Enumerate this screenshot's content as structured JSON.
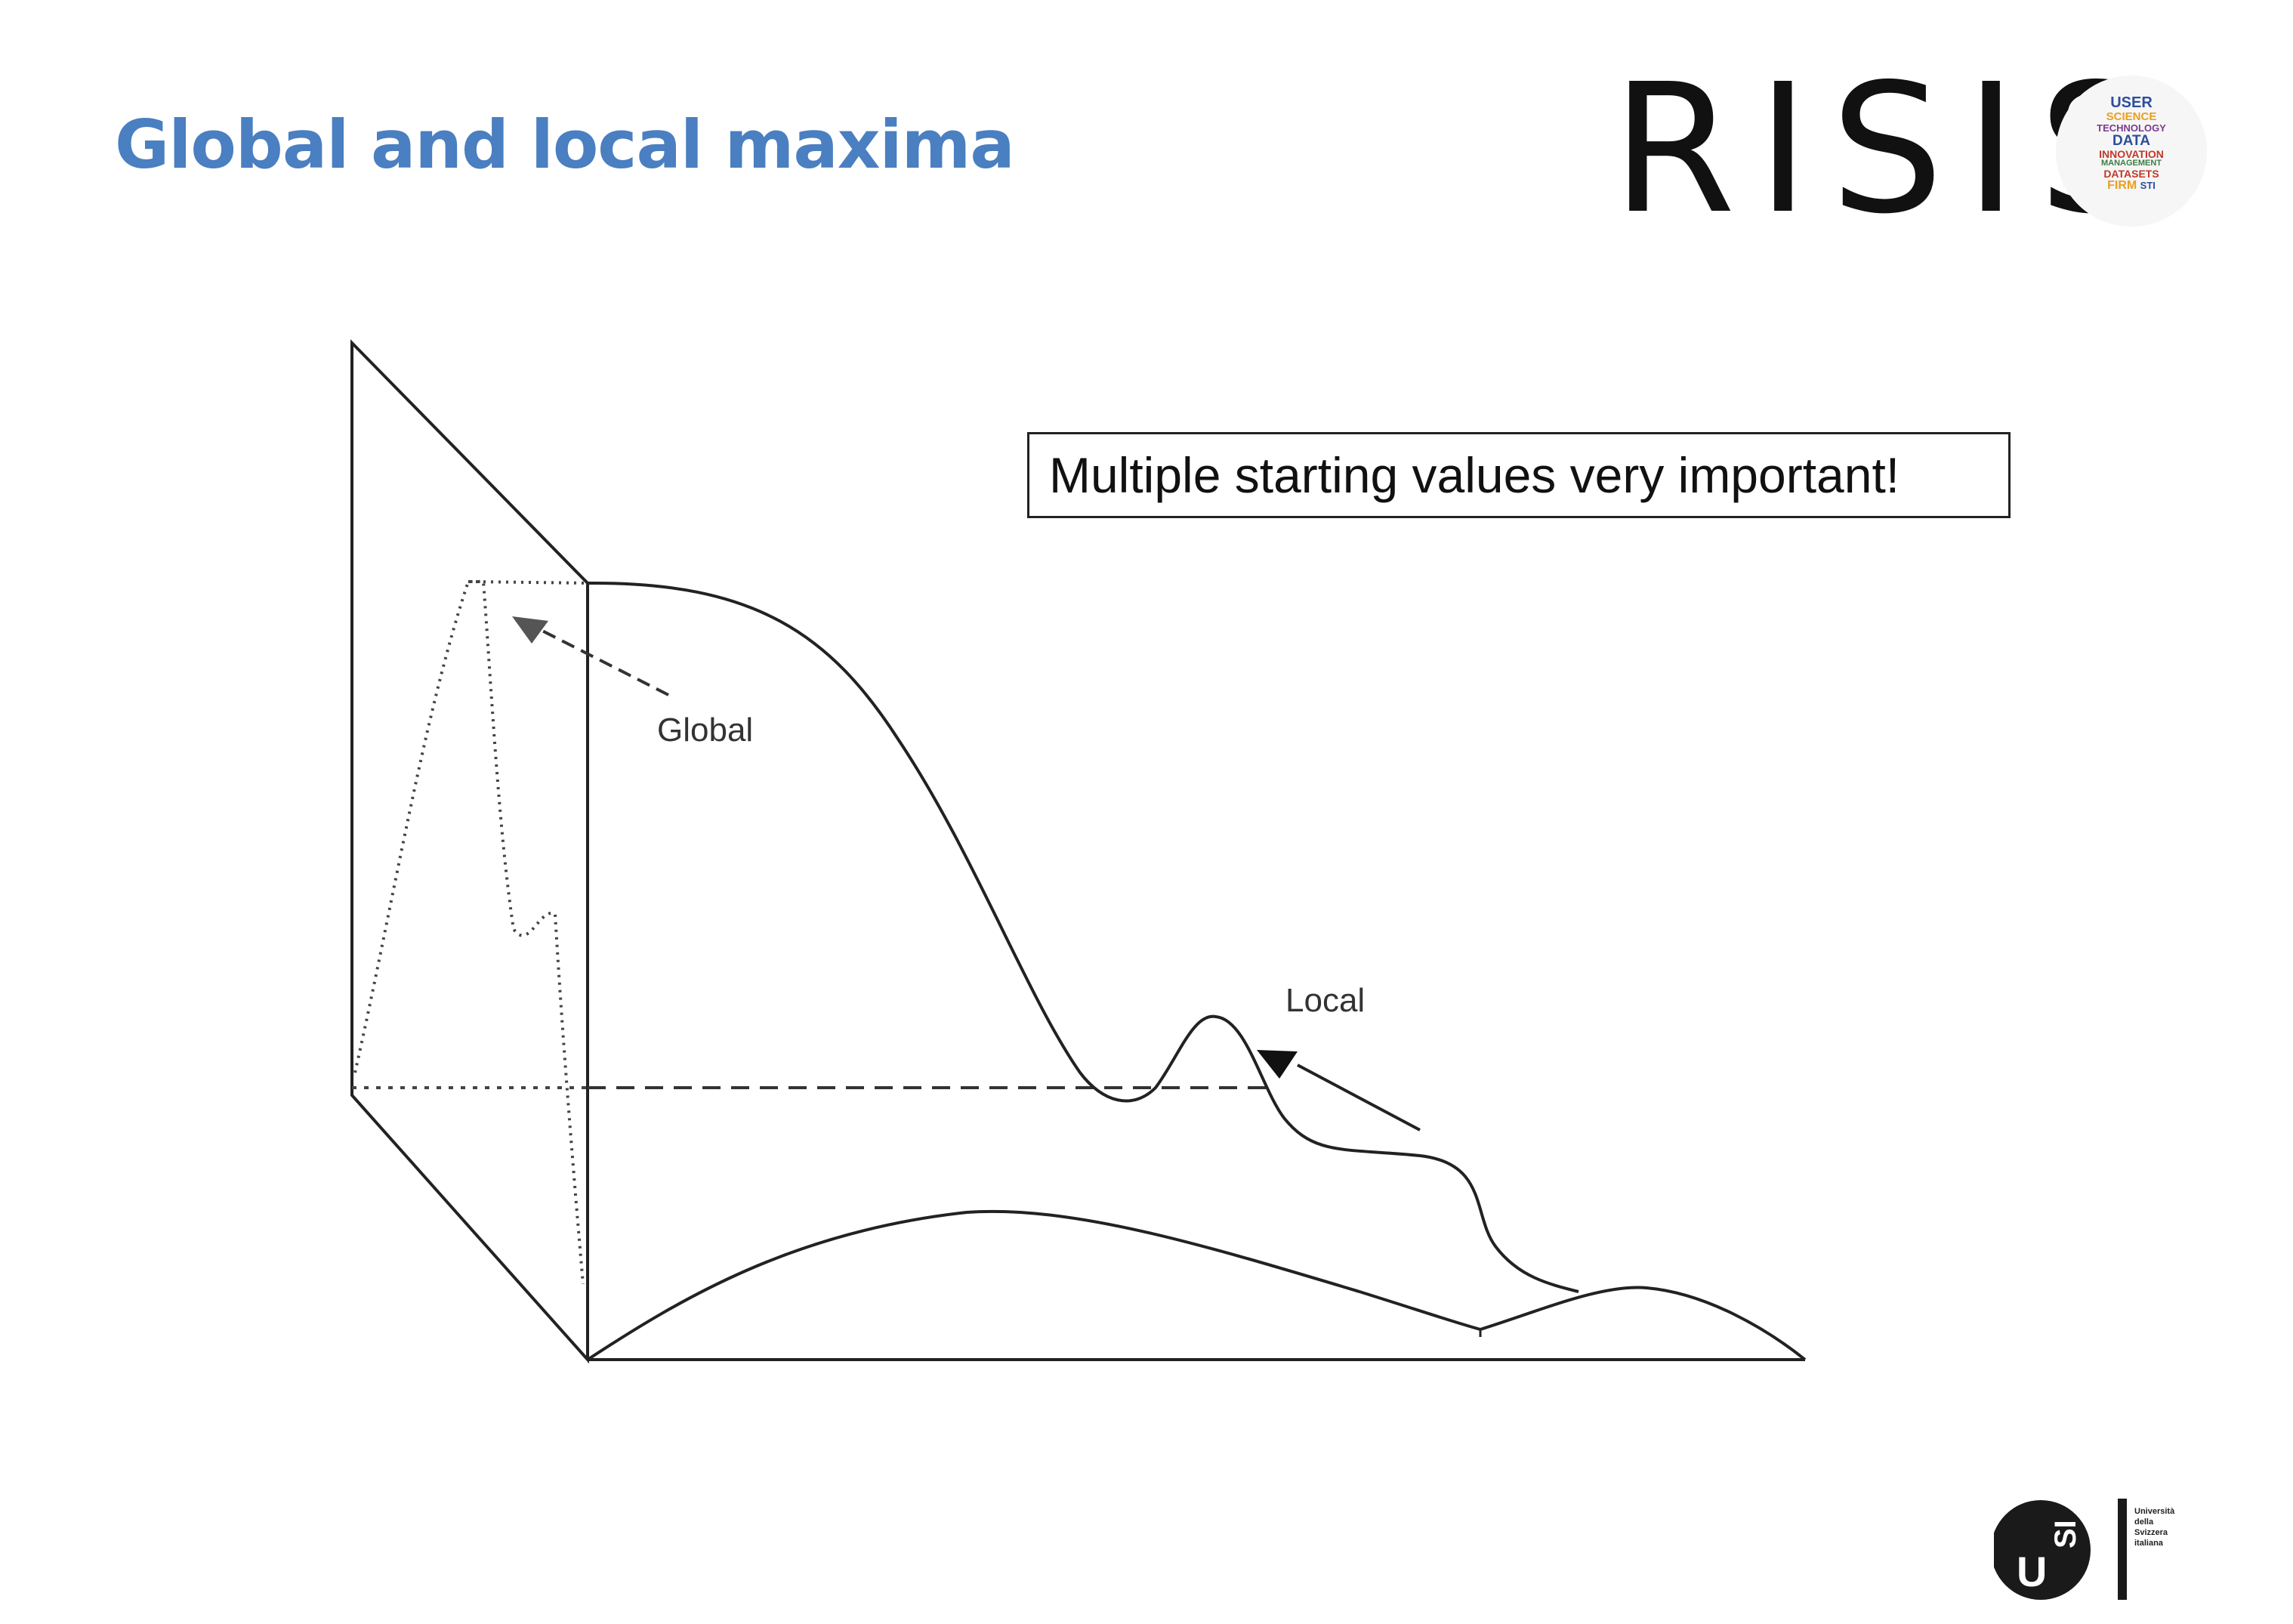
{
  "slide": {
    "title": "Global and local maxima",
    "note": "Multiple starting values very important!"
  },
  "header": {
    "brand": "RISIS",
    "word_cloud": [
      "USER",
      "SCIENCE",
      "TECHNOLOGY",
      "DATA",
      "INNOVATION",
      "MANAGEMENT",
      "DATASETS",
      "FIRM",
      "STI"
    ]
  },
  "diagram": {
    "global_label": "Global",
    "local_label": "Local"
  },
  "footer": {
    "usi_letters": "USI",
    "usi_name_lines": [
      "Università",
      "della",
      "Svizzera",
      "italiana"
    ]
  }
}
